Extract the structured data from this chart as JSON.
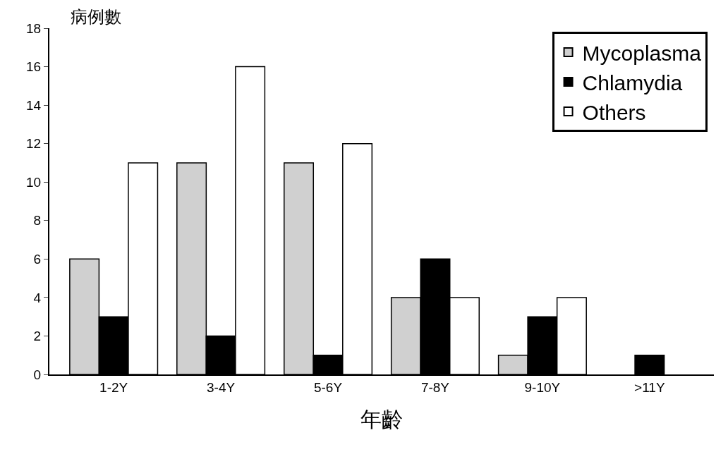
{
  "chart_data": {
    "type": "bar",
    "xlabel": "年齡",
    "ylabel": "病例數",
    "categories": [
      "1-2Y",
      "3-4Y",
      "5-6Y",
      "7-8Y",
      "9-10Y",
      ">11Y"
    ],
    "series": [
      {
        "name": "Mycoplasma",
        "color": "#d0d0d0",
        "values": [
          6,
          11,
          11,
          4,
          1,
          null
        ]
      },
      {
        "name": "Chlamydia",
        "color": "#000000",
        "values": [
          3,
          2,
          1,
          6,
          3,
          1
        ]
      },
      {
        "name": "Others",
        "color": "#ffffff",
        "values": [
          11,
          16,
          12,
          4,
          4,
          null
        ]
      }
    ],
    "ylim": [
      0,
      18
    ],
    "yticks": [
      0,
      2,
      4,
      6,
      8,
      10,
      12,
      14,
      16,
      18
    ],
    "grid": false,
    "legend": "top right"
  }
}
